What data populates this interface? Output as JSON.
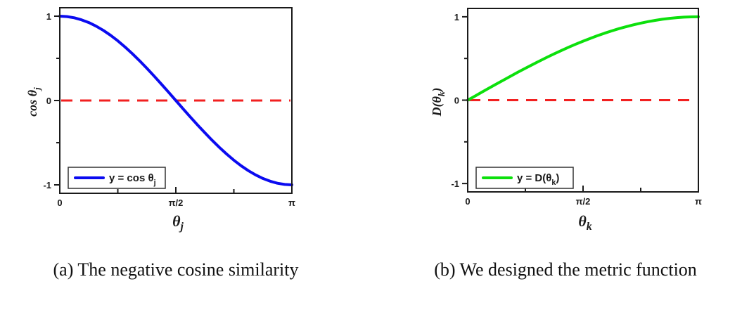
{
  "captions": {
    "a": "(a) The negative cosine similarity",
    "b": "(b) We designed the metric function"
  },
  "colors": {
    "cosine_line": "#0b0bf0",
    "metric_line": "#0ce00c",
    "reference_line": "#f22020",
    "axis": "#1a1a1a",
    "legend_border": "#333333"
  },
  "chart_data": [
    {
      "id": "negative-cosine-similarity",
      "type": "line",
      "title": "",
      "xlabel": {
        "pre": "θ",
        "sub": "j",
        "post": ""
      },
      "ylabel": {
        "pre": "cos θ",
        "sub": "j",
        "post": ""
      },
      "xlim": [
        0,
        3.1416
      ],
      "ylim": [
        -1.1,
        1.1
      ],
      "grid": false,
      "xticks": [
        {
          "v": 0,
          "label": "0"
        },
        {
          "v": 1.5708,
          "label": "π/2"
        },
        {
          "v": 3.1416,
          "label": "π"
        }
      ],
      "xminorticks": [
        0.7854,
        2.3562
      ],
      "yticks": [
        {
          "v": 1,
          "label": "1"
        },
        {
          "v": 0,
          "label": "0"
        },
        {
          "v": -1,
          "label": "-1"
        }
      ],
      "yminorticks": [
        0.5,
        -0.5
      ],
      "refline_y": 0,
      "legend": {
        "position": "bottom-left",
        "pre": "y = cos θ",
        "sub": "j",
        "post": ""
      },
      "series": [
        {
          "name": "y = cos θj",
          "color": "#0b0bf0",
          "x": [
            0,
            0.0982,
            0.1963,
            0.2945,
            0.3927,
            0.4909,
            0.589,
            0.6872,
            0.7854,
            0.8836,
            0.9817,
            1.0799,
            1.1781,
            1.2763,
            1.3744,
            1.4726,
            1.5708,
            1.669,
            1.7671,
            1.8653,
            1.9635,
            2.0617,
            2.1598,
            2.258,
            2.3562,
            2.4544,
            2.5525,
            2.6507,
            2.7489,
            2.8471,
            2.9452,
            3.0434,
            3.1416
          ],
          "y": [
            1,
            0.9952,
            0.9808,
            0.9569,
            0.9239,
            0.8819,
            0.8315,
            0.773,
            0.7071,
            0.6344,
            0.5556,
            0.4714,
            0.3827,
            0.2903,
            0.1951,
            0.098,
            0,
            -0.098,
            -0.1951,
            -0.2903,
            -0.3827,
            -0.4714,
            -0.5556,
            -0.6344,
            -0.7071,
            -0.773,
            -0.8315,
            -0.8819,
            -0.9239,
            -0.9569,
            -0.9808,
            -0.9952,
            -1
          ]
        }
      ]
    },
    {
      "id": "designed-metric-function",
      "type": "line",
      "title": "",
      "xlabel": {
        "pre": "θ",
        "sub": "k",
        "post": ""
      },
      "ylabel": {
        "pre": "D(θ",
        "sub": "k",
        "post": ")"
      },
      "xlim": [
        0,
        3.1416
      ],
      "ylim": [
        -1.1,
        1.1
      ],
      "grid": false,
      "xticks": [
        {
          "v": 0,
          "label": "0"
        },
        {
          "v": 1.5708,
          "label": "π/2"
        },
        {
          "v": 3.1416,
          "label": "π"
        }
      ],
      "xminorticks": [
        0.7854,
        2.3562
      ],
      "yticks": [
        {
          "v": 1,
          "label": "1"
        },
        {
          "v": 0,
          "label": "0"
        },
        {
          "v": -1,
          "label": "-1"
        }
      ],
      "yminorticks": [
        0.5,
        -0.5
      ],
      "refline_y": 0,
      "legend": {
        "position": "bottom-left",
        "pre": "y = D(θ",
        "sub": "k",
        "post": ")"
      },
      "series": [
        {
          "name": "y = D(θk)",
          "color": "#0ce00c",
          "x": [
            0,
            0.0982,
            0.1963,
            0.2945,
            0.3927,
            0.4909,
            0.589,
            0.6872,
            0.7854,
            0.8836,
            0.9817,
            1.0799,
            1.1781,
            1.2763,
            1.3744,
            1.4726,
            1.5708,
            1.669,
            1.7671,
            1.8653,
            1.9635,
            2.0617,
            2.1598,
            2.258,
            2.3562,
            2.4544,
            2.5525,
            2.6507,
            2.7489,
            2.8471,
            2.9452,
            3.0434,
            3.1416
          ],
          "y": [
            0,
            0.0491,
            0.098,
            0.1467,
            0.1951,
            0.243,
            0.2903,
            0.3369,
            0.3827,
            0.4276,
            0.4714,
            0.5141,
            0.5556,
            0.5957,
            0.6344,
            0.6716,
            0.7071,
            0.741,
            0.773,
            0.8032,
            0.8315,
            0.8577,
            0.8819,
            0.904,
            0.9239,
            0.9415,
            0.9569,
            0.97,
            0.9808,
            0.9892,
            0.9952,
            0.9988,
            1
          ]
        }
      ]
    }
  ]
}
